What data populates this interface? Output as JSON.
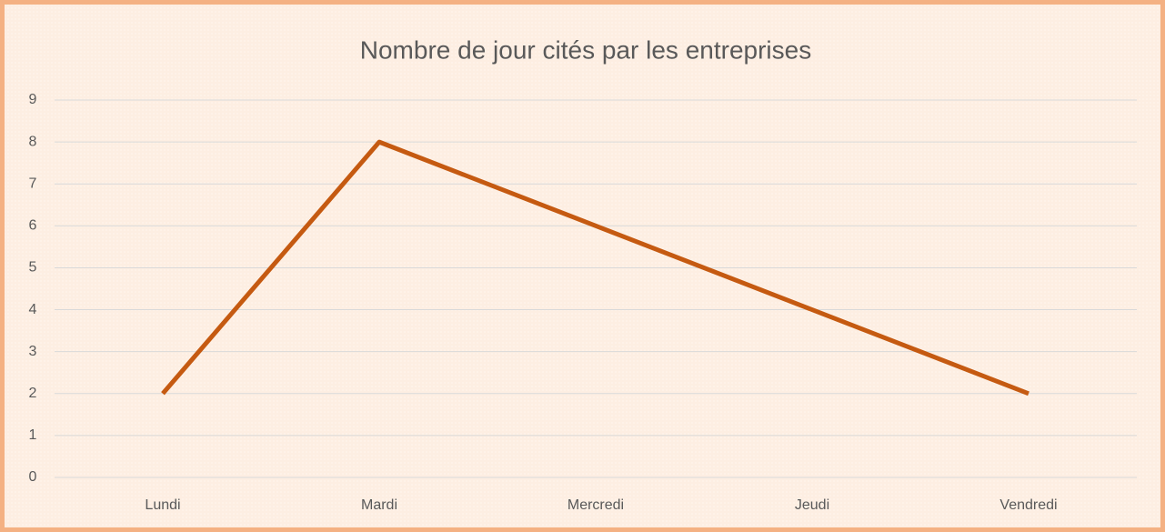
{
  "chart_data": {
    "type": "line",
    "title": "Nombre de jour cités par les entreprises",
    "categories": [
      "Lundi",
      "Mardi",
      "Mercredi",
      "Jeudi",
      "Vendredi"
    ],
    "series": [
      {
        "name": "Nombre de jour",
        "color": "#c55a11",
        "values": [
          2,
          8,
          6,
          4,
          2
        ]
      }
    ],
    "ylim": [
      0,
      9
    ],
    "yticks": [
      0,
      1,
      2,
      3,
      4,
      5,
      6,
      7,
      8,
      9
    ],
    "grid": true
  }
}
